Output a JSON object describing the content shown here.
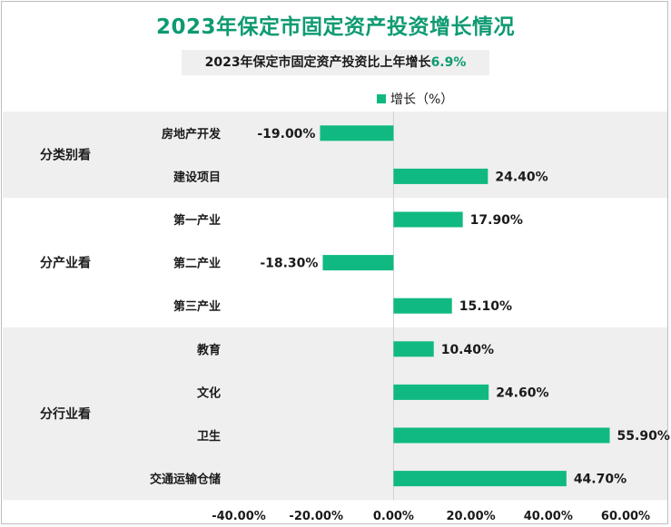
{
  "title": "2023年保定市固定资产投资增长情况",
  "subtitle": {
    "text": "2023年保定市固定资产投资比上年增长",
    "highlight": "6.9%"
  },
  "colors": {
    "bar": "#10b981",
    "title": "#0e9a72",
    "band": "#efefef"
  },
  "chart_data": {
    "type": "bar",
    "orientation": "horizontal",
    "legend": {
      "position": "top",
      "label": "增长（%）"
    },
    "xlim": [
      -40,
      60
    ],
    "xticks": [
      "-40.00%",
      "-20.00%",
      "0.00%",
      "20.00%",
      "40.00%",
      "60.00%"
    ],
    "groups": [
      {
        "name": "分类别看",
        "shaded": true,
        "categories": [
          "房地产开发",
          "建设项目"
        ]
      },
      {
        "name": "分产业看",
        "shaded": false,
        "categories": [
          "第一产业",
          "第二产业",
          "第三产业"
        ]
      },
      {
        "name": "分行业看",
        "shaded": true,
        "categories": [
          "教育",
          "文化",
          "卫生",
          "交通运输仓储"
        ]
      }
    ],
    "series": [
      {
        "name": "增长（%）",
        "categories": [
          "房地产开发",
          "建设项目",
          "第一产业",
          "第二产业",
          "第三产业",
          "教育",
          "文化",
          "卫生",
          "交通运输仓储"
        ],
        "values": [
          -19.0,
          24.4,
          17.9,
          -18.3,
          15.1,
          10.4,
          24.6,
          55.9,
          44.7
        ],
        "labels": [
          "-19.00%",
          "24.40%",
          "17.90%",
          "-18.30%",
          "15.10%",
          "10.40%",
          "24.60%",
          "55.90%",
          "44.70%"
        ]
      }
    ]
  }
}
